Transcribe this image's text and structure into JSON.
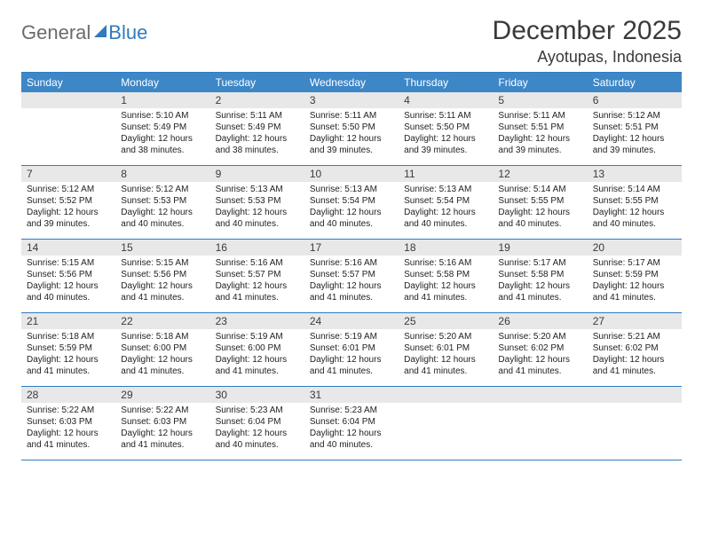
{
  "brand": {
    "word1": "General",
    "word2": "Blue"
  },
  "title": "December 2025",
  "location": "Ayotupas, Indonesia",
  "colors": {
    "header_bg": "#3d87c7",
    "header_text": "#ffffff",
    "rule": "#2f7bbf",
    "daynum_bg": "#e8e8e8",
    "body_text": "#222222",
    "title_text": "#3a3a3a",
    "logo_gray": "#6b6b6b",
    "logo_blue": "#2f7bbf",
    "page_bg": "#ffffff"
  },
  "typography": {
    "title_fontsize": 30,
    "location_fontsize": 18,
    "dayheader_fontsize": 12,
    "daynum_fontsize": 12,
    "body_fontsize": 10
  },
  "day_headers": [
    "Sunday",
    "Monday",
    "Tuesday",
    "Wednesday",
    "Thursday",
    "Friday",
    "Saturday"
  ],
  "weeks": [
    [
      {
        "n": "",
        "sunrise": "",
        "sunset": "",
        "daylight": ""
      },
      {
        "n": "1",
        "sunrise": "Sunrise: 5:10 AM",
        "sunset": "Sunset: 5:49 PM",
        "daylight": "Daylight: 12 hours and 38 minutes."
      },
      {
        "n": "2",
        "sunrise": "Sunrise: 5:11 AM",
        "sunset": "Sunset: 5:49 PM",
        "daylight": "Daylight: 12 hours and 38 minutes."
      },
      {
        "n": "3",
        "sunrise": "Sunrise: 5:11 AM",
        "sunset": "Sunset: 5:50 PM",
        "daylight": "Daylight: 12 hours and 39 minutes."
      },
      {
        "n": "4",
        "sunrise": "Sunrise: 5:11 AM",
        "sunset": "Sunset: 5:50 PM",
        "daylight": "Daylight: 12 hours and 39 minutes."
      },
      {
        "n": "5",
        "sunrise": "Sunrise: 5:11 AM",
        "sunset": "Sunset: 5:51 PM",
        "daylight": "Daylight: 12 hours and 39 minutes."
      },
      {
        "n": "6",
        "sunrise": "Sunrise: 5:12 AM",
        "sunset": "Sunset: 5:51 PM",
        "daylight": "Daylight: 12 hours and 39 minutes."
      }
    ],
    [
      {
        "n": "7",
        "sunrise": "Sunrise: 5:12 AM",
        "sunset": "Sunset: 5:52 PM",
        "daylight": "Daylight: 12 hours and 39 minutes."
      },
      {
        "n": "8",
        "sunrise": "Sunrise: 5:12 AM",
        "sunset": "Sunset: 5:53 PM",
        "daylight": "Daylight: 12 hours and 40 minutes."
      },
      {
        "n": "9",
        "sunrise": "Sunrise: 5:13 AM",
        "sunset": "Sunset: 5:53 PM",
        "daylight": "Daylight: 12 hours and 40 minutes."
      },
      {
        "n": "10",
        "sunrise": "Sunrise: 5:13 AM",
        "sunset": "Sunset: 5:54 PM",
        "daylight": "Daylight: 12 hours and 40 minutes."
      },
      {
        "n": "11",
        "sunrise": "Sunrise: 5:13 AM",
        "sunset": "Sunset: 5:54 PM",
        "daylight": "Daylight: 12 hours and 40 minutes."
      },
      {
        "n": "12",
        "sunrise": "Sunrise: 5:14 AM",
        "sunset": "Sunset: 5:55 PM",
        "daylight": "Daylight: 12 hours and 40 minutes."
      },
      {
        "n": "13",
        "sunrise": "Sunrise: 5:14 AM",
        "sunset": "Sunset: 5:55 PM",
        "daylight": "Daylight: 12 hours and 40 minutes."
      }
    ],
    [
      {
        "n": "14",
        "sunrise": "Sunrise: 5:15 AM",
        "sunset": "Sunset: 5:56 PM",
        "daylight": "Daylight: 12 hours and 40 minutes."
      },
      {
        "n": "15",
        "sunrise": "Sunrise: 5:15 AM",
        "sunset": "Sunset: 5:56 PM",
        "daylight": "Daylight: 12 hours and 41 minutes."
      },
      {
        "n": "16",
        "sunrise": "Sunrise: 5:16 AM",
        "sunset": "Sunset: 5:57 PM",
        "daylight": "Daylight: 12 hours and 41 minutes."
      },
      {
        "n": "17",
        "sunrise": "Sunrise: 5:16 AM",
        "sunset": "Sunset: 5:57 PM",
        "daylight": "Daylight: 12 hours and 41 minutes."
      },
      {
        "n": "18",
        "sunrise": "Sunrise: 5:16 AM",
        "sunset": "Sunset: 5:58 PM",
        "daylight": "Daylight: 12 hours and 41 minutes."
      },
      {
        "n": "19",
        "sunrise": "Sunrise: 5:17 AM",
        "sunset": "Sunset: 5:58 PM",
        "daylight": "Daylight: 12 hours and 41 minutes."
      },
      {
        "n": "20",
        "sunrise": "Sunrise: 5:17 AM",
        "sunset": "Sunset: 5:59 PM",
        "daylight": "Daylight: 12 hours and 41 minutes."
      }
    ],
    [
      {
        "n": "21",
        "sunrise": "Sunrise: 5:18 AM",
        "sunset": "Sunset: 5:59 PM",
        "daylight": "Daylight: 12 hours and 41 minutes."
      },
      {
        "n": "22",
        "sunrise": "Sunrise: 5:18 AM",
        "sunset": "Sunset: 6:00 PM",
        "daylight": "Daylight: 12 hours and 41 minutes."
      },
      {
        "n": "23",
        "sunrise": "Sunrise: 5:19 AM",
        "sunset": "Sunset: 6:00 PM",
        "daylight": "Daylight: 12 hours and 41 minutes."
      },
      {
        "n": "24",
        "sunrise": "Sunrise: 5:19 AM",
        "sunset": "Sunset: 6:01 PM",
        "daylight": "Daylight: 12 hours and 41 minutes."
      },
      {
        "n": "25",
        "sunrise": "Sunrise: 5:20 AM",
        "sunset": "Sunset: 6:01 PM",
        "daylight": "Daylight: 12 hours and 41 minutes."
      },
      {
        "n": "26",
        "sunrise": "Sunrise: 5:20 AM",
        "sunset": "Sunset: 6:02 PM",
        "daylight": "Daylight: 12 hours and 41 minutes."
      },
      {
        "n": "27",
        "sunrise": "Sunrise: 5:21 AM",
        "sunset": "Sunset: 6:02 PM",
        "daylight": "Daylight: 12 hours and 41 minutes."
      }
    ],
    [
      {
        "n": "28",
        "sunrise": "Sunrise: 5:22 AM",
        "sunset": "Sunset: 6:03 PM",
        "daylight": "Daylight: 12 hours and 41 minutes."
      },
      {
        "n": "29",
        "sunrise": "Sunrise: 5:22 AM",
        "sunset": "Sunset: 6:03 PM",
        "daylight": "Daylight: 12 hours and 41 minutes."
      },
      {
        "n": "30",
        "sunrise": "Sunrise: 5:23 AM",
        "sunset": "Sunset: 6:04 PM",
        "daylight": "Daylight: 12 hours and 40 minutes."
      },
      {
        "n": "31",
        "sunrise": "Sunrise: 5:23 AM",
        "sunset": "Sunset: 6:04 PM",
        "daylight": "Daylight: 12 hours and 40 minutes."
      },
      {
        "n": "",
        "sunrise": "",
        "sunset": "",
        "daylight": ""
      },
      {
        "n": "",
        "sunrise": "",
        "sunset": "",
        "daylight": ""
      },
      {
        "n": "",
        "sunrise": "",
        "sunset": "",
        "daylight": ""
      }
    ]
  ]
}
